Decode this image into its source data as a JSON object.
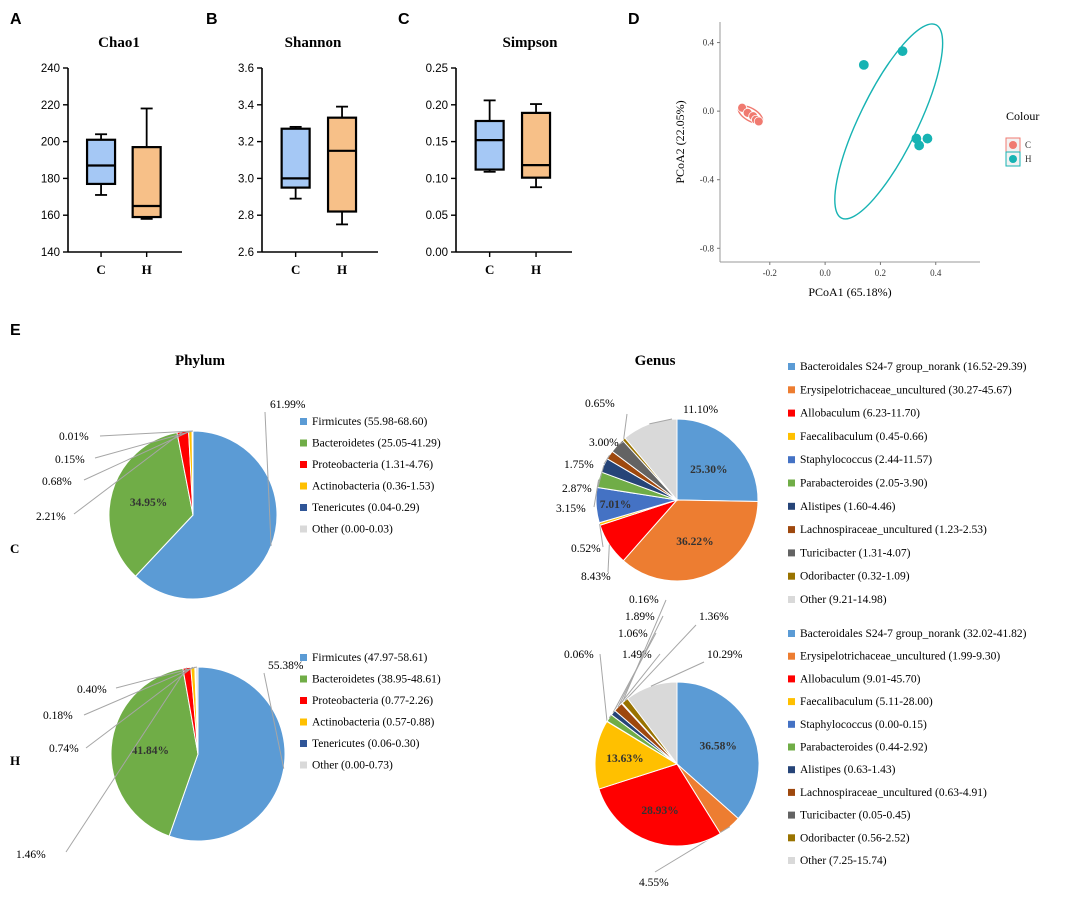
{
  "colors": {
    "C": "#a5c8f5",
    "H": "#f7c088",
    "pcoa_C": "#f07a70",
    "pcoa_H": "#17b3b3"
  },
  "panels": {
    "A": "A",
    "B": "B",
    "C": "C",
    "D": "D",
    "E": "E"
  },
  "chart_data": [
    {
      "type": "box",
      "title": "Chao1",
      "categories": [
        "C",
        "H"
      ],
      "ylim": [
        140,
        240
      ],
      "yticks": [
        "140",
        "160",
        "180",
        "200",
        "220",
        "240"
      ],
      "boxes": [
        {
          "group": "C",
          "min": 171,
          "q1": 177,
          "median": 187,
          "q3": 201,
          "max": 204
        },
        {
          "group": "H",
          "min": 158,
          "q1": 159,
          "median": 165,
          "q3": 197,
          "max": 218
        }
      ]
    },
    {
      "type": "box",
      "title": "Shannon",
      "categories": [
        "C",
        "H"
      ],
      "ylim": [
        2.6,
        3.6
      ],
      "yticks": [
        "2.6",
        "2.8",
        "3.0",
        "3.2",
        "3.4",
        "3.6"
      ],
      "boxes": [
        {
          "group": "C",
          "min": 2.89,
          "q1": 2.95,
          "median": 3.0,
          "q3": 3.27,
          "max": 3.28
        },
        {
          "group": "H",
          "min": 2.75,
          "q1": 2.82,
          "median": 3.15,
          "q3": 3.33,
          "max": 3.39
        }
      ]
    },
    {
      "type": "box",
      "title": "Simpson",
      "categories": [
        "C",
        "H"
      ],
      "ylim": [
        0,
        0.25
      ],
      "yticks": [
        "0.00",
        "0.05",
        "0.10",
        "0.15",
        "0.20",
        "0.25"
      ],
      "boxes": [
        {
          "group": "C",
          "min": 0.109,
          "q1": 0.112,
          "median": 0.152,
          "q3": 0.178,
          "max": 0.206
        },
        {
          "group": "H",
          "min": 0.088,
          "q1": 0.101,
          "median": 0.118,
          "q3": 0.189,
          "max": 0.201
        }
      ]
    },
    {
      "type": "scatter",
      "title": "PCoA",
      "xlabel": "PCoA1 (65.18%)",
      "ylabel": "PCoA2 (22.05%)",
      "xlim": [
        -0.38,
        0.56
      ],
      "ylim": [
        -0.88,
        0.52
      ],
      "xticks": [
        "-0.2",
        "0.0",
        "0.2",
        "0.4"
      ],
      "xtick_values": [
        -0.2,
        0,
        0.2,
        0.4
      ],
      "yticks": [
        "0.4",
        "0.0",
        "-0.4",
        "-0.8"
      ],
      "ytick_values": [
        0.4,
        0,
        -0.4,
        -0.8
      ],
      "legend_title": "Colour",
      "legend": [
        "C",
        "H"
      ],
      "series": [
        {
          "name": "C",
          "points": [
            [
              -0.3,
              0.02
            ],
            [
              -0.28,
              -0.01
            ],
            [
              -0.26,
              -0.03
            ],
            [
              -0.25,
              -0.05
            ],
            [
              -0.24,
              -0.06
            ]
          ],
          "ellipse": {
            "cx": -0.27,
            "cy": -0.02,
            "rx": 0.06,
            "ry": 0.028,
            "angle_deg": 30
          }
        },
        {
          "name": "H",
          "points": [
            [
              0.14,
              0.27
            ],
            [
              0.28,
              0.35
            ],
            [
              0.33,
              -0.16
            ],
            [
              0.37,
              -0.16
            ],
            [
              0.34,
              -0.2
            ]
          ],
          "ellipse": {
            "cx": 0.23,
            "cy": -0.06,
            "rx": 0.48,
            "ry": 0.13,
            "angle_deg": -64
          }
        }
      ]
    },
    {
      "type": "pie",
      "title": "Phylum",
      "group": "C",
      "slices": [
        {
          "label": "Firmicutes (55.98-68.60)",
          "value": 61.99,
          "color": "#5b9bd5",
          "text": "61.99%"
        },
        {
          "label": "Bacteroidetes (25.05-41.29)",
          "value": 34.95,
          "color": "#70ad47",
          "text": "34.95%"
        },
        {
          "label": "Proteobacteria (1.31-4.76)",
          "value": 2.21,
          "color": "#ff0000",
          "text": "2.21%"
        },
        {
          "label": "Actinobacteria (0.36-1.53)",
          "value": 0.68,
          "color": "#ffc000",
          "text": "0.68%"
        },
        {
          "label": "Tenericutes (0.04-0.29)",
          "value": 0.15,
          "color": "#2f5597",
          "text": "0.15%"
        },
        {
          "label": "Other (0.00-0.03)",
          "value": 0.01,
          "color": "#d9d9d9",
          "text": "0.01%"
        }
      ]
    },
    {
      "type": "pie",
      "title": "Genus",
      "group": "C",
      "slices": [
        {
          "label": "Bacteroidales S24-7 group_norank (16.52-29.39)",
          "value": 25.3,
          "color": "#5b9bd5",
          "text": "25.30%"
        },
        {
          "label": "Erysipelotrichaceae_uncultured (30.27-45.67)",
          "value": 36.22,
          "color": "#ed7d31",
          "text": "36.22%"
        },
        {
          "label": "Allobaculum (6.23-11.70)",
          "value": 8.43,
          "color": "#ff0000",
          "text": "8.43%"
        },
        {
          "label": "Faecalibaculum (0.45-0.66)",
          "value": 0.52,
          "color": "#ffc000",
          "text": "0.52%"
        },
        {
          "label": "Staphylococcus (2.44-11.57)",
          "value": 7.01,
          "color": "#4472c4",
          "text": "7.01%"
        },
        {
          "label": "Parabacteroides (2.05-3.90)",
          "value": 3.15,
          "color": "#70ad47",
          "text": "3.15%"
        },
        {
          "label": "Alistipes (1.60-4.46)",
          "value": 2.87,
          "color": "#264478",
          "text": "2.87%"
        },
        {
          "label": "Lachnospiraceae_uncultured (1.23-2.53)",
          "value": 1.75,
          "color": "#9e480e",
          "text": "1.75%"
        },
        {
          "label": "Turicibacter (1.31-4.07)",
          "value": 3.0,
          "color": "#636363",
          "text": "3.00%"
        },
        {
          "label": "Odoribacter (0.32-1.09)",
          "value": 0.65,
          "color": "#997300",
          "text": "0.65%"
        },
        {
          "label": "Other (9.21-14.98)",
          "value": 11.1,
          "color": "#d9d9d9",
          "text": "11.10%"
        }
      ]
    },
    {
      "type": "pie",
      "title": "Phylum",
      "group": "H",
      "slices": [
        {
          "label": "Firmicutes (47.97-58.61)",
          "value": 55.38,
          "color": "#5b9bd5",
          "text": "55.38%"
        },
        {
          "label": "Bacteroidetes (38.95-48.61)",
          "value": 41.84,
          "color": "#70ad47",
          "text": "41.84%"
        },
        {
          "label": "Proteobacteria (0.77-2.26)",
          "value": 1.46,
          "color": "#ff0000",
          "text": "1.46%"
        },
        {
          "label": "Actinobacteria (0.57-0.88)",
          "value": 0.74,
          "color": "#ffc000",
          "text": "0.74%"
        },
        {
          "label": "Tenericutes (0.06-0.30)",
          "value": 0.18,
          "color": "#2f5597",
          "text": "0.18%"
        },
        {
          "label": "Other (0.00-0.73)",
          "value": 0.4,
          "color": "#d9d9d9",
          "text": "0.40%"
        }
      ]
    },
    {
      "type": "pie",
      "title": "Genus",
      "group": "H",
      "slices": [
        {
          "label": "Bacteroidales S24-7 group_norank (32.02-41.82)",
          "value": 36.58,
          "color": "#5b9bd5",
          "text": "36.58%"
        },
        {
          "label": "Erysipelotrichaceae_uncultured (1.99-9.30)",
          "value": 4.55,
          "color": "#ed7d31",
          "text": "4.55%"
        },
        {
          "label": "Allobaculum (9.01-45.70)",
          "value": 28.93,
          "color": "#ff0000",
          "text": "28.93%"
        },
        {
          "label": "Faecalibaculum (5.11-28.00)",
          "value": 13.63,
          "color": "#ffc000",
          "text": "13.63%"
        },
        {
          "label": "Staphylococcus (0.00-0.15)",
          "value": 0.06,
          "color": "#4472c4",
          "text": "0.06%"
        },
        {
          "label": "Parabacteroides (0.44-2.92)",
          "value": 1.49,
          "color": "#70ad47",
          "text": "1.49%"
        },
        {
          "label": "Alistipes (0.63-1.43)",
          "value": 1.06,
          "color": "#264478",
          "text": "1.06%"
        },
        {
          "label": "Lachnospiraceae_uncultured (0.63-4.91)",
          "value": 1.89,
          "color": "#9e480e",
          "text": "1.89%"
        },
        {
          "label": "Turicibacter (0.05-0.45)",
          "value": 0.16,
          "color": "#636363",
          "text": "0.16%"
        },
        {
          "label": "Odoribacter (0.56-2.52)",
          "value": 1.36,
          "color": "#997300",
          "text": "1.36%"
        },
        {
          "label": "Other (7.25-15.74)",
          "value": 10.29,
          "color": "#d9d9d9",
          "text": "10.29%"
        }
      ]
    }
  ]
}
